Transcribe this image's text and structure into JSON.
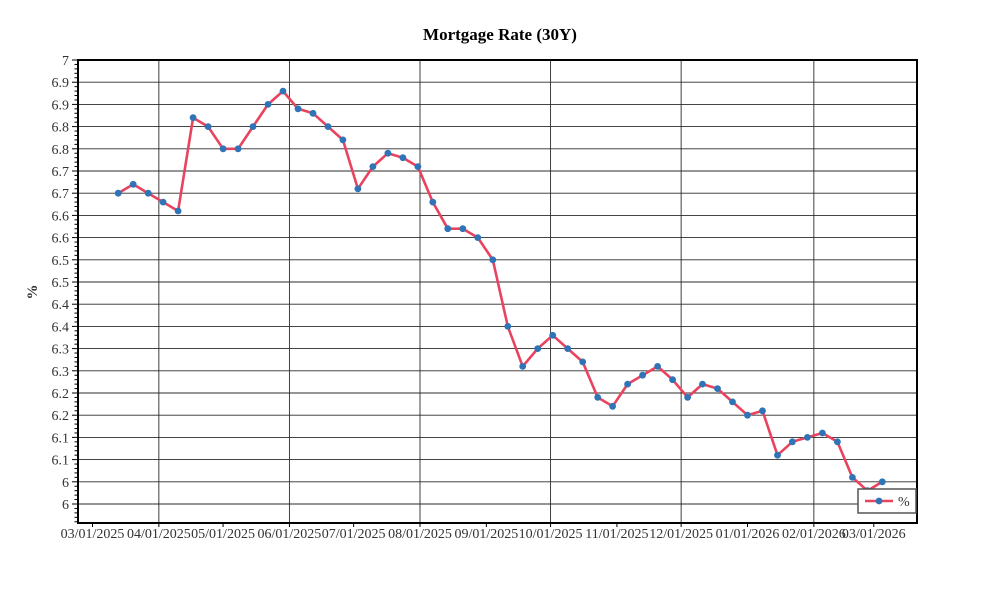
{
  "title": "Mortgage Rate (30Y)",
  "chart_data": {
    "type": "line",
    "title": "Mortgage Rate (30Y)",
    "xlabel": "",
    "ylabel": "%",
    "legend_label": "%",
    "legend_position": "bottom-right",
    "grid": true,
    "line_color": "#e8435f",
    "marker_color": "#2e74b6",
    "grid_color": "#2b2b2b",
    "frame_color": "#000000",
    "text_color": "#333333",
    "ylim": [
      5.957,
      7.0
    ],
    "y_tick_step": 0.05,
    "y_minor_tick_step": 0.01,
    "x_axis": {
      "tick_labels": [
        "03/01/2025",
        "04/01/2025",
        "05/01/2025",
        "06/01/2025",
        "07/01/2025",
        "08/01/2025",
        "09/01/2025",
        "10/01/2025",
        "11/01/2025",
        "12/01/2025",
        "01/01/2026",
        "02/01/2026",
        "03/01/2026"
      ],
      "gridline_dates": [
        "04/01/2025",
        "06/01/2025",
        "08/01/2025",
        "10/01/2025",
        "12/01/2025",
        "02/01/2026"
      ]
    },
    "y_axis": {
      "tick_values": [
        7.0,
        6.95,
        6.9,
        6.85,
        6.8,
        6.75,
        6.7,
        6.65,
        6.6,
        6.55,
        6.5,
        6.45,
        6.4,
        6.35,
        6.3,
        6.25,
        6.2,
        6.15,
        6.1,
        6.05,
        6.0
      ],
      "tick_labels": [
        "7",
        "6.9",
        "6.9",
        "6.8",
        "6.8",
        "6.7",
        "6.7",
        "6.6",
        "6.6",
        "6.5",
        "6.5",
        "6.4",
        "6.4",
        "6.3",
        "6.3",
        "6.2",
        "6.2",
        "6.1",
        "6.1",
        "6",
        "6"
      ]
    },
    "x": [
      "03/13/2025",
      "03/20/2025",
      "03/27/2025",
      "04/03/2025",
      "04/10/2025",
      "04/17/2025",
      "04/24/2025",
      "05/01/2025",
      "05/08/2025",
      "05/15/2025",
      "05/22/2025",
      "05/29/2025",
      "06/05/2025",
      "06/12/2025",
      "06/19/2025",
      "06/26/2025",
      "07/03/2025",
      "07/10/2025",
      "07/17/2025",
      "07/24/2025",
      "07/31/2025",
      "08/07/2025",
      "08/14/2025",
      "08/21/2025",
      "08/28/2025",
      "09/04/2025",
      "09/11/2025",
      "09/18/2025",
      "09/25/2025",
      "10/02/2025",
      "10/09/2025",
      "10/16/2025",
      "10/23/2025",
      "10/30/2025",
      "11/06/2025",
      "11/13/2025",
      "11/20/2025",
      "11/27/2025",
      "12/04/2025",
      "12/11/2025",
      "12/18/2025",
      "12/25/2025",
      "01/01/2026",
      "01/08/2026",
      "01/15/2026",
      "01/22/2026",
      "01/29/2026",
      "02/05/2026",
      "02/12/2026",
      "02/19/2026",
      "02/26/2026",
      "03/05/2026"
    ],
    "series": [
      {
        "name": "%",
        "values": [
          6.7,
          6.72,
          6.7,
          6.68,
          6.66,
          6.87,
          6.85,
          6.8,
          6.8,
          6.85,
          6.9,
          6.93,
          6.89,
          6.88,
          6.85,
          6.82,
          6.71,
          6.76,
          6.79,
          6.78,
          6.76,
          6.68,
          6.62,
          6.62,
          6.6,
          6.55,
          6.4,
          6.31,
          6.35,
          6.38,
          6.35,
          6.32,
          6.24,
          6.22,
          6.27,
          6.29,
          6.31,
          6.28,
          6.24,
          6.27,
          6.26,
          6.23,
          6.2,
          6.21,
          6.11,
          6.14,
          6.15,
          6.16,
          6.14,
          6.06,
          6.03,
          6.05
        ]
      }
    ]
  }
}
